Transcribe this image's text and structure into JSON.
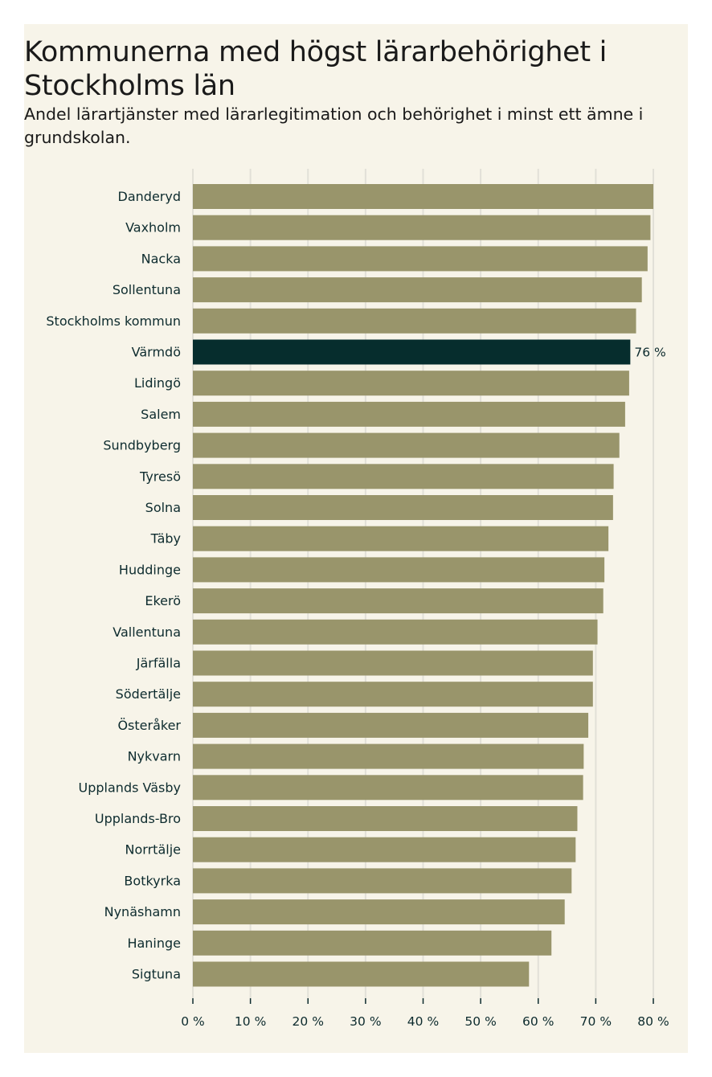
{
  "title": "Kommunerna med högst lärarbehörighet i Stockholms län",
  "subtitle": "Andel lärartjänster med lärarlegitimation och behörighet i minst ett ämne i grundskolan.",
  "colors": {
    "background": "#f7f4e9",
    "bar": "#99956b",
    "highlight": "#062d2d",
    "grid": "#e2e0d7",
    "text": "#0d2b2e"
  },
  "chart_data": {
    "type": "bar",
    "orientation": "horizontal",
    "title": "Kommunerna med högst lärarbehörighet i Stockholms län",
    "subtitle": "Andel lärartjänster med lärarlegitimation och behörighet i minst ett ämne i grundskolan.",
    "xlabel": "",
    "ylabel": "",
    "xlim": [
      0,
      80
    ],
    "grid": true,
    "ticks": [
      0,
      10,
      20,
      30,
      40,
      50,
      60,
      70,
      80
    ],
    "tick_labels": [
      "0 %",
      "10 %",
      "20 %",
      "30 %",
      "40 %",
      "50 %",
      "60 %",
      "70 %",
      "80 %"
    ],
    "categories": [
      "Danderyd",
      "Vaxholm",
      "Nacka",
      "Sollentuna",
      "Stockholms kommun",
      "Värmdö",
      "Lidingö",
      "Salem",
      "Sundbyberg",
      "Tyresö",
      "Solna",
      "Täby",
      "Huddinge",
      "Ekerö",
      "Vallentuna",
      "Järfälla",
      "Södertälje",
      "Österåker",
      "Nykvarn",
      "Upplands Väsby",
      "Upplands-Bro",
      "Norrtälje",
      "Botkyrka",
      "Nynäshamn",
      "Haninge",
      "Sigtuna"
    ],
    "values": [
      80,
      79.5,
      79,
      78,
      77,
      76,
      75.8,
      75.1,
      74.1,
      73.1,
      73,
      72.2,
      71.5,
      71.3,
      70.3,
      69.5,
      69.5,
      68.7,
      67.9,
      67.8,
      66.8,
      66.5,
      65.8,
      64.6,
      62.3,
      58.4
    ],
    "highlight": "Värmdö",
    "highlight_label": "76 %"
  }
}
